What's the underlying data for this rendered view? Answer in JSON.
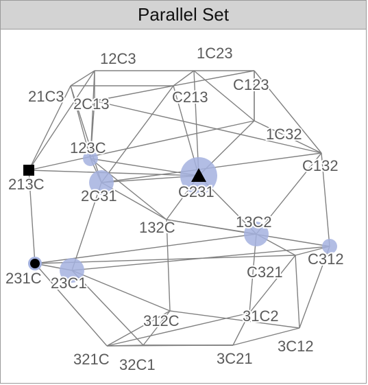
{
  "title": "Parallel Set",
  "colors": {
    "edge": "#808080",
    "highlight": "#a4b2df",
    "marker": "#000000",
    "label": "#5a5a5a"
  },
  "vertices": [
    {
      "id": "12C3",
      "w": 0
    },
    {
      "id": "1C23",
      "w": 0
    },
    {
      "id": "21C3",
      "w": 0
    },
    {
      "id": "2C13",
      "w": 0
    },
    {
      "id": "C213",
      "w": 0
    },
    {
      "id": "C123",
      "w": 0
    },
    {
      "id": "123C",
      "w": 1
    },
    {
      "id": "1C32",
      "w": 0
    },
    {
      "id": "213C",
      "w": 0,
      "marker": "square"
    },
    {
      "id": "2C31",
      "w": 2
    },
    {
      "id": "C231",
      "w": 4,
      "marker": "triangle"
    },
    {
      "id": "C132",
      "w": 0
    },
    {
      "id": "132C",
      "w": 0
    },
    {
      "id": "13C2",
      "w": 2
    },
    {
      "id": "231C",
      "w": 0,
      "marker": "circle"
    },
    {
      "id": "23C1",
      "w": 2
    },
    {
      "id": "C321",
      "w": 0
    },
    {
      "id": "C312",
      "w": 1
    },
    {
      "id": "312C",
      "w": 0
    },
    {
      "id": "31C2",
      "w": 0
    },
    {
      "id": "321C",
      "w": 0
    },
    {
      "id": "32C1",
      "w": 0
    },
    {
      "id": "3C21",
      "w": 0
    },
    {
      "id": "3C12",
      "w": 0
    }
  ]
}
